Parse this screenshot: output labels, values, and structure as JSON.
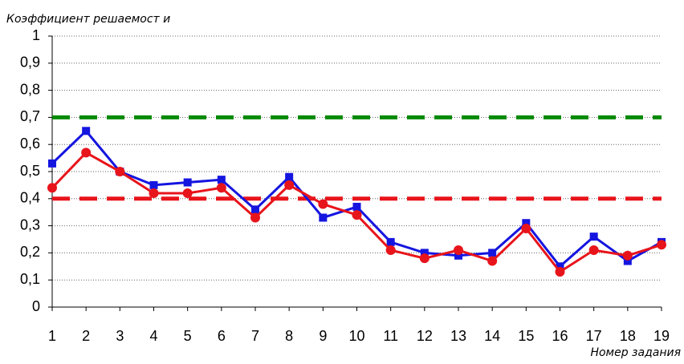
{
  "chart_data": {
    "type": "line",
    "y_axis_label": "Коэффициент  решаемост и",
    "x_axis_label": "Номер задания",
    "categories": [
      "1",
      "2",
      "3",
      "4",
      "5",
      "6",
      "7",
      "8",
      "9",
      "10",
      "11",
      "12",
      "13",
      "14",
      "15",
      "16",
      "17",
      "18",
      "19"
    ],
    "series": [
      {
        "color": "#1515e0",
        "marker": "square",
        "values": [
          0.53,
          0.65,
          0.5,
          0.45,
          0.46,
          0.47,
          0.36,
          0.48,
          0.33,
          0.37,
          0.24,
          0.2,
          0.19,
          0.2,
          0.31,
          0.15,
          0.26,
          0.17,
          0.24
        ]
      },
      {
        "color": "#e8141b",
        "marker": "circle",
        "values": [
          0.44,
          0.57,
          0.5,
          0.42,
          0.42,
          0.44,
          0.33,
          0.45,
          0.38,
          0.34,
          0.21,
          0.18,
          0.21,
          0.17,
          0.29,
          0.13,
          0.21,
          0.19,
          0.23
        ]
      }
    ],
    "reference_lines": [
      {
        "value": 0.7,
        "color": "#058a05"
      },
      {
        "value": 0.4,
        "color": "#e8141b"
      }
    ],
    "ylim": [
      0,
      1
    ],
    "yticks": [
      0,
      {
        "value": 0.1,
        "label": "0,1"
      },
      {
        "value": 0.2,
        "label": "0,2"
      },
      {
        "value": 0.3,
        "label": "0,3"
      },
      {
        "value": 0.4,
        "label": "0,4"
      },
      {
        "value": 0.5,
        "label": "0,5"
      },
      {
        "value": 0.6,
        "label": "0,6"
      },
      {
        "value": 0.7,
        "label": "0,7"
      },
      {
        "value": 0.8,
        "label": "0,8"
      },
      {
        "value": 0.9,
        "label": "0,9"
      },
      1
    ],
    "grid": true
  }
}
